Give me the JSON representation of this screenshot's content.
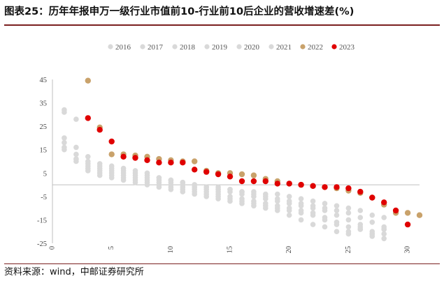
{
  "title": "图表25：历年年报申万一级行业市值前10-行业前10后企业的营收增速差(%)",
  "source": "资料来源：wind，中邮证券研究所",
  "chart_data": {
    "type": "scatter",
    "title": "",
    "xlabel": "",
    "ylabel": "",
    "xlim": [
      0,
      31
    ],
    "ylim": [
      -25,
      45
    ],
    "xticks": [
      0,
      5,
      10,
      15,
      20,
      25,
      30
    ],
    "yticks": [
      45,
      35,
      25,
      15,
      5,
      -5,
      -15,
      -25
    ],
    "legend_position": "top",
    "series": [
      {
        "name": "2016",
        "color": "#d9d9d9",
        "points": [
          [
            1,
            15
          ],
          [
            2,
            11
          ],
          [
            3,
            10
          ],
          [
            4,
            8
          ],
          [
            5,
            7
          ],
          [
            6,
            6
          ],
          [
            7,
            5
          ],
          [
            8,
            4
          ],
          [
            9,
            3
          ],
          [
            10,
            2
          ],
          [
            11,
            1
          ],
          [
            12,
            0
          ],
          [
            13,
            -1
          ],
          [
            14,
            -2
          ],
          [
            15,
            -2
          ],
          [
            16,
            -3
          ],
          [
            17,
            -3
          ],
          [
            18,
            -4
          ],
          [
            19,
            -4
          ],
          [
            20,
            -5
          ],
          [
            21,
            -6
          ],
          [
            22,
            -7
          ],
          [
            23,
            -8
          ],
          [
            24,
            -9
          ],
          [
            25,
            -10
          ],
          [
            26,
            -11
          ],
          [
            27,
            -13
          ],
          [
            28,
            -14
          ]
        ]
      },
      {
        "name": "2017",
        "color": "#d9d9d9",
        "points": [
          [
            1,
            32
          ],
          [
            2,
            16
          ],
          [
            3,
            12
          ],
          [
            4,
            9
          ],
          [
            5,
            8
          ],
          [
            6,
            7
          ],
          [
            7,
            6
          ],
          [
            8,
            5
          ],
          [
            9,
            3
          ],
          [
            10,
            2
          ],
          [
            11,
            1
          ],
          [
            12,
            0
          ],
          [
            13,
            -1
          ],
          [
            14,
            -1
          ],
          [
            15,
            -2
          ],
          [
            16,
            -3
          ],
          [
            17,
            -4
          ],
          [
            18,
            -5
          ],
          [
            19,
            -6
          ],
          [
            20,
            -7
          ],
          [
            21,
            -8
          ],
          [
            22,
            -9
          ],
          [
            23,
            -10
          ],
          [
            24,
            -11
          ],
          [
            25,
            -12
          ],
          [
            26,
            -14
          ],
          [
            27,
            -16
          ],
          [
            28,
            -19
          ]
        ]
      },
      {
        "name": "2018",
        "color": "#d9d9d9",
        "points": [
          [
            1,
            20
          ],
          [
            2,
            13
          ],
          [
            3,
            9
          ],
          [
            4,
            7
          ],
          [
            5,
            6
          ],
          [
            6,
            5
          ],
          [
            7,
            4
          ],
          [
            8,
            3
          ],
          [
            9,
            2
          ],
          [
            10,
            1
          ],
          [
            11,
            0
          ],
          [
            12,
            -1
          ],
          [
            13,
            -2
          ],
          [
            14,
            -3
          ],
          [
            15,
            -3
          ],
          [
            16,
            -4
          ],
          [
            17,
            -5
          ],
          [
            18,
            -6
          ],
          [
            19,
            -7
          ],
          [
            20,
            -8
          ],
          [
            21,
            -9
          ],
          [
            22,
            -10
          ],
          [
            23,
            -11
          ],
          [
            24,
            -13
          ],
          [
            25,
            -15
          ],
          [
            26,
            -17
          ],
          [
            27,
            -20
          ],
          [
            28,
            -21
          ]
        ]
      },
      {
        "name": "2019",
        "color": "#d9d9d9",
        "points": [
          [
            1,
            18
          ],
          [
            2,
            11
          ],
          [
            3,
            8
          ],
          [
            4,
            6
          ],
          [
            5,
            5
          ],
          [
            6,
            4
          ],
          [
            7,
            3
          ],
          [
            8,
            2
          ],
          [
            9,
            1
          ],
          [
            10,
            0
          ],
          [
            11,
            -1
          ],
          [
            12,
            -2
          ],
          [
            13,
            -3
          ],
          [
            14,
            -4
          ],
          [
            15,
            -5
          ],
          [
            16,
            -6
          ],
          [
            17,
            -7
          ],
          [
            18,
            -8
          ],
          [
            19,
            -9
          ],
          [
            20,
            -10
          ],
          [
            21,
            -11
          ],
          [
            22,
            -12
          ],
          [
            23,
            -14
          ],
          [
            24,
            -16
          ],
          [
            25,
            -18
          ],
          [
            26,
            -19
          ],
          [
            27,
            -21
          ],
          [
            28,
            -23
          ]
        ]
      },
      {
        "name": "2020",
        "color": "#d9d9d9",
        "points": [
          [
            1,
            16
          ],
          [
            2,
            10
          ],
          [
            3,
            7
          ],
          [
            4,
            5
          ],
          [
            5,
            4
          ],
          [
            6,
            3
          ],
          [
            7,
            2
          ],
          [
            8,
            1
          ],
          [
            9,
            0
          ],
          [
            10,
            -1
          ],
          [
            11,
            -2
          ],
          [
            12,
            -3
          ],
          [
            13,
            -4
          ],
          [
            14,
            -5
          ],
          [
            15,
            -6
          ],
          [
            16,
            -7
          ],
          [
            17,
            -8
          ],
          [
            18,
            -9
          ],
          [
            19,
            -10
          ],
          [
            20,
            -11
          ],
          [
            21,
            -12
          ],
          [
            22,
            -13
          ],
          [
            23,
            -15
          ],
          [
            24,
            -17
          ],
          [
            25,
            -20
          ],
          [
            26,
            -19
          ],
          [
            27,
            -22
          ],
          [
            28,
            -19
          ]
        ]
      },
      {
        "name": "2021",
        "color": "#d9d9d9",
        "points": [
          [
            1,
            31
          ],
          [
            2,
            28
          ],
          [
            3,
            6
          ],
          [
            4,
            4
          ],
          [
            5,
            3
          ],
          [
            6,
            2
          ],
          [
            7,
            1
          ],
          [
            8,
            0
          ],
          [
            9,
            -1
          ],
          [
            10,
            -2
          ],
          [
            11,
            -3
          ],
          [
            12,
            -4
          ],
          [
            13,
            -5
          ],
          [
            14,
            -6
          ],
          [
            15,
            -7
          ],
          [
            16,
            -8
          ],
          [
            17,
            -9
          ],
          [
            18,
            -10
          ],
          [
            19,
            -11
          ],
          [
            20,
            -13
          ],
          [
            21,
            -15
          ],
          [
            22,
            -17
          ],
          [
            23,
            -18
          ],
          [
            24,
            -20
          ],
          [
            25,
            -21
          ],
          [
            26,
            -18
          ],
          [
            27,
            -21
          ],
          [
            28,
            -18
          ]
        ]
      },
      {
        "name": "2022",
        "color": "#c9a26b",
        "points": [
          [
            3,
            44.5
          ],
          [
            4,
            24.5
          ],
          [
            5,
            13
          ],
          [
            6,
            13
          ],
          [
            7,
            12.5
          ],
          [
            8,
            12
          ],
          [
            9,
            11
          ],
          [
            10,
            10.5
          ],
          [
            11,
            10
          ],
          [
            12,
            10
          ],
          [
            13,
            6
          ],
          [
            14,
            5
          ],
          [
            15,
            5
          ],
          [
            16,
            4.5
          ],
          [
            17,
            4
          ],
          [
            18,
            2.5
          ],
          [
            19,
            1.5
          ],
          [
            20,
            0.5
          ],
          [
            21,
            0
          ],
          [
            22,
            -0.5
          ],
          [
            23,
            -1
          ],
          [
            24,
            -1.5
          ],
          [
            25,
            -2.5
          ],
          [
            26,
            -3.5
          ],
          [
            27,
            -5.5
          ],
          [
            28,
            -8.5
          ],
          [
            29,
            -12
          ],
          [
            30,
            -12
          ],
          [
            31,
            -13
          ]
        ]
      },
      {
        "name": "2023",
        "color": "#e00000",
        "points": [
          [
            3,
            28.5
          ],
          [
            4,
            23.5
          ],
          [
            5,
            18.5
          ],
          [
            6,
            12
          ],
          [
            7,
            11.5
          ],
          [
            8,
            10.5
          ],
          [
            9,
            9.5
          ],
          [
            10,
            9.5
          ],
          [
            11,
            9.5
          ],
          [
            12,
            6.5
          ],
          [
            13,
            5.5
          ],
          [
            14,
            4.5
          ],
          [
            15,
            3.5
          ],
          [
            16,
            1.5
          ],
          [
            17,
            1.5
          ],
          [
            18,
            1.5
          ],
          [
            19,
            0.5
          ],
          [
            20,
            0.5
          ],
          [
            21,
            0
          ],
          [
            22,
            -0.5
          ],
          [
            23,
            -1
          ],
          [
            24,
            -1
          ],
          [
            25,
            -1.5
          ],
          [
            26,
            -3
          ],
          [
            27,
            -5.5
          ],
          [
            28,
            -7.5
          ],
          [
            29,
            -11
          ],
          [
            30,
            -17
          ]
        ]
      }
    ]
  }
}
